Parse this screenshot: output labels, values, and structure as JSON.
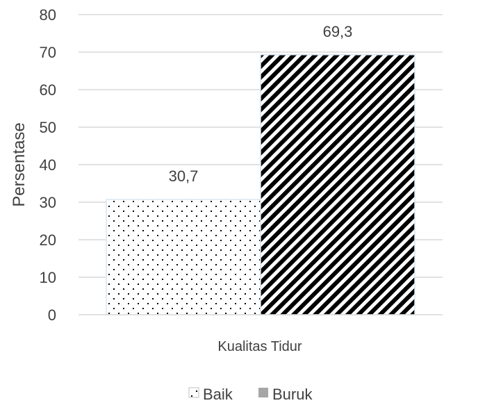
{
  "chart_data": {
    "type": "bar",
    "categories": [
      "Kualitas Tidur"
    ],
    "series": [
      {
        "name": "Baik",
        "values": [
          30.7
        ],
        "label": "30,7",
        "pattern": "dots"
      },
      {
        "name": "Buruk",
        "values": [
          69.3
        ],
        "label": "69,3",
        "pattern": "diagonal-stripes"
      }
    ],
    "ylabel": "Persentase",
    "xlabel": "",
    "ylim": [
      0,
      80
    ],
    "yticks": [
      0,
      10,
      20,
      30,
      40,
      50,
      60,
      70,
      80
    ],
    "grid": true,
    "legend_position": "bottom",
    "colors": {
      "text": "#404040",
      "grid": "#d9d9d9",
      "pattern_ink": "#000000",
      "bar_outline": "#d9e6f2",
      "legend_buruk_swatch": "#a6a6a6"
    }
  }
}
